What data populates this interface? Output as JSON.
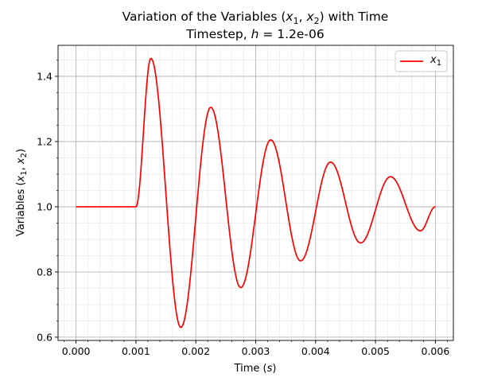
{
  "chart_data": {
    "type": "line",
    "title_line1_prefix": "Variation of the Variables (",
    "title_line1_suffix": ") with Time",
    "title_var1": "x",
    "title_var1_sub": "1",
    "title_var2": "x",
    "title_var2_sub": "2",
    "title_line2_prefix": "Timestep, ",
    "title_line2_var": "h",
    "title_line2_suffix": " = 1.2e-06",
    "xlabel_prefix": "Time (",
    "xlabel_var": "s",
    "xlabel_suffix": ")",
    "ylabel_prefix": "Variables (",
    "ylabel_var1": "x",
    "ylabel_var1_sub": "1",
    "ylabel_sep": ", ",
    "ylabel_var2": "x",
    "ylabel_var2_sub": "2",
    "ylabel_suffix": ")",
    "xlim": [
      -0.0003,
      0.0063
    ],
    "ylim": [
      0.59,
      1.495
    ],
    "x_ticks": [
      0.0,
      0.001,
      0.002,
      0.003,
      0.004,
      0.005,
      0.006
    ],
    "x_tick_labels": [
      "0.000",
      "0.001",
      "0.002",
      "0.003",
      "0.004",
      "0.005",
      "0.006"
    ],
    "y_ticks": [
      0.6,
      0.8,
      1.0,
      1.2,
      1.4
    ],
    "y_tick_labels": [
      "0.6",
      "0.8",
      "1.0",
      "1.2",
      "1.4"
    ],
    "grid": true,
    "legend_position": "top-right",
    "series": [
      {
        "name_var": "x",
        "name_sub": "1",
        "color": "#ff0000",
        "x": [
          0.0,
          0.001,
          0.00125,
          0.00175,
          0.00225,
          0.00275,
          0.00325,
          0.00375,
          0.00425,
          0.00475,
          0.00525,
          0.00575,
          0.006
        ],
        "y": [
          1.0,
          1.0,
          1.455,
          0.63,
          1.305,
          0.752,
          1.205,
          0.834,
          1.137,
          0.889,
          1.092,
          0.926,
          1.0
        ]
      }
    ]
  }
}
